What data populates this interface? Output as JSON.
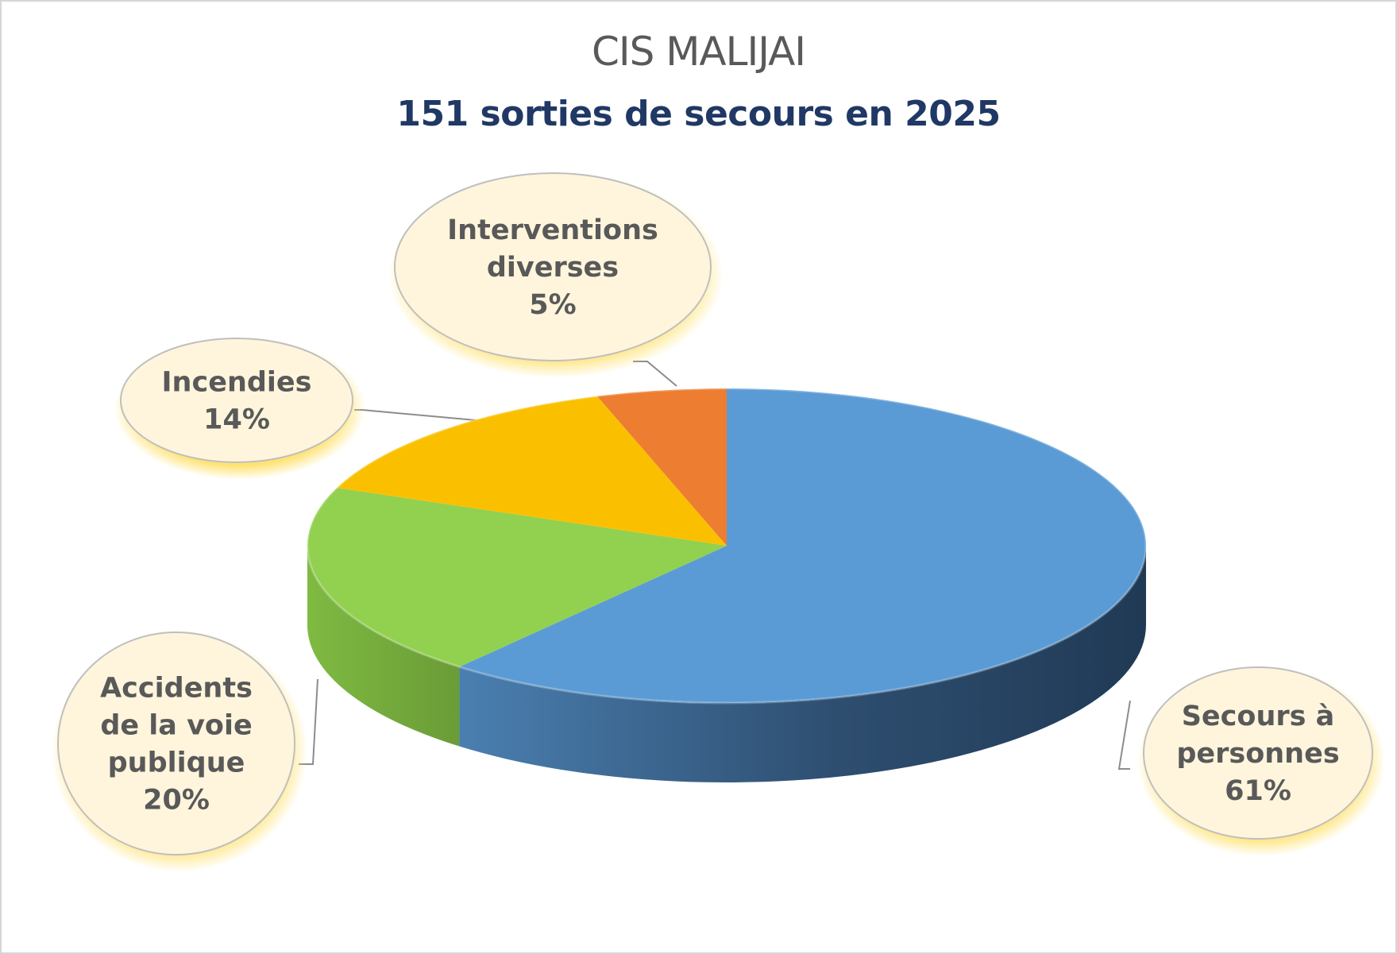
{
  "chart_data": {
    "type": "pie",
    "title": "CIS MALIJAI",
    "subtitle": "151 sorties de secours en 2025",
    "slices": [
      {
        "label": [
          "Secours à",
          "personnes"
        ],
        "percent_label": "61%",
        "value": 61,
        "color": "#5b9bd5"
      },
      {
        "label": [
          "Accidents",
          "de la voie",
          "publique"
        ],
        "percent_label": "20%",
        "value": 20,
        "color": "#92d050"
      },
      {
        "label": [
          "Incendies"
        ],
        "percent_label": "14%",
        "value": 14,
        "color": "#fac000"
      },
      {
        "label": [
          "Interventions",
          "diverses"
        ],
        "percent_label": "5%",
        "value": 5,
        "color": "#ed7d31"
      }
    ],
    "label_style": "callout-ellipse"
  }
}
